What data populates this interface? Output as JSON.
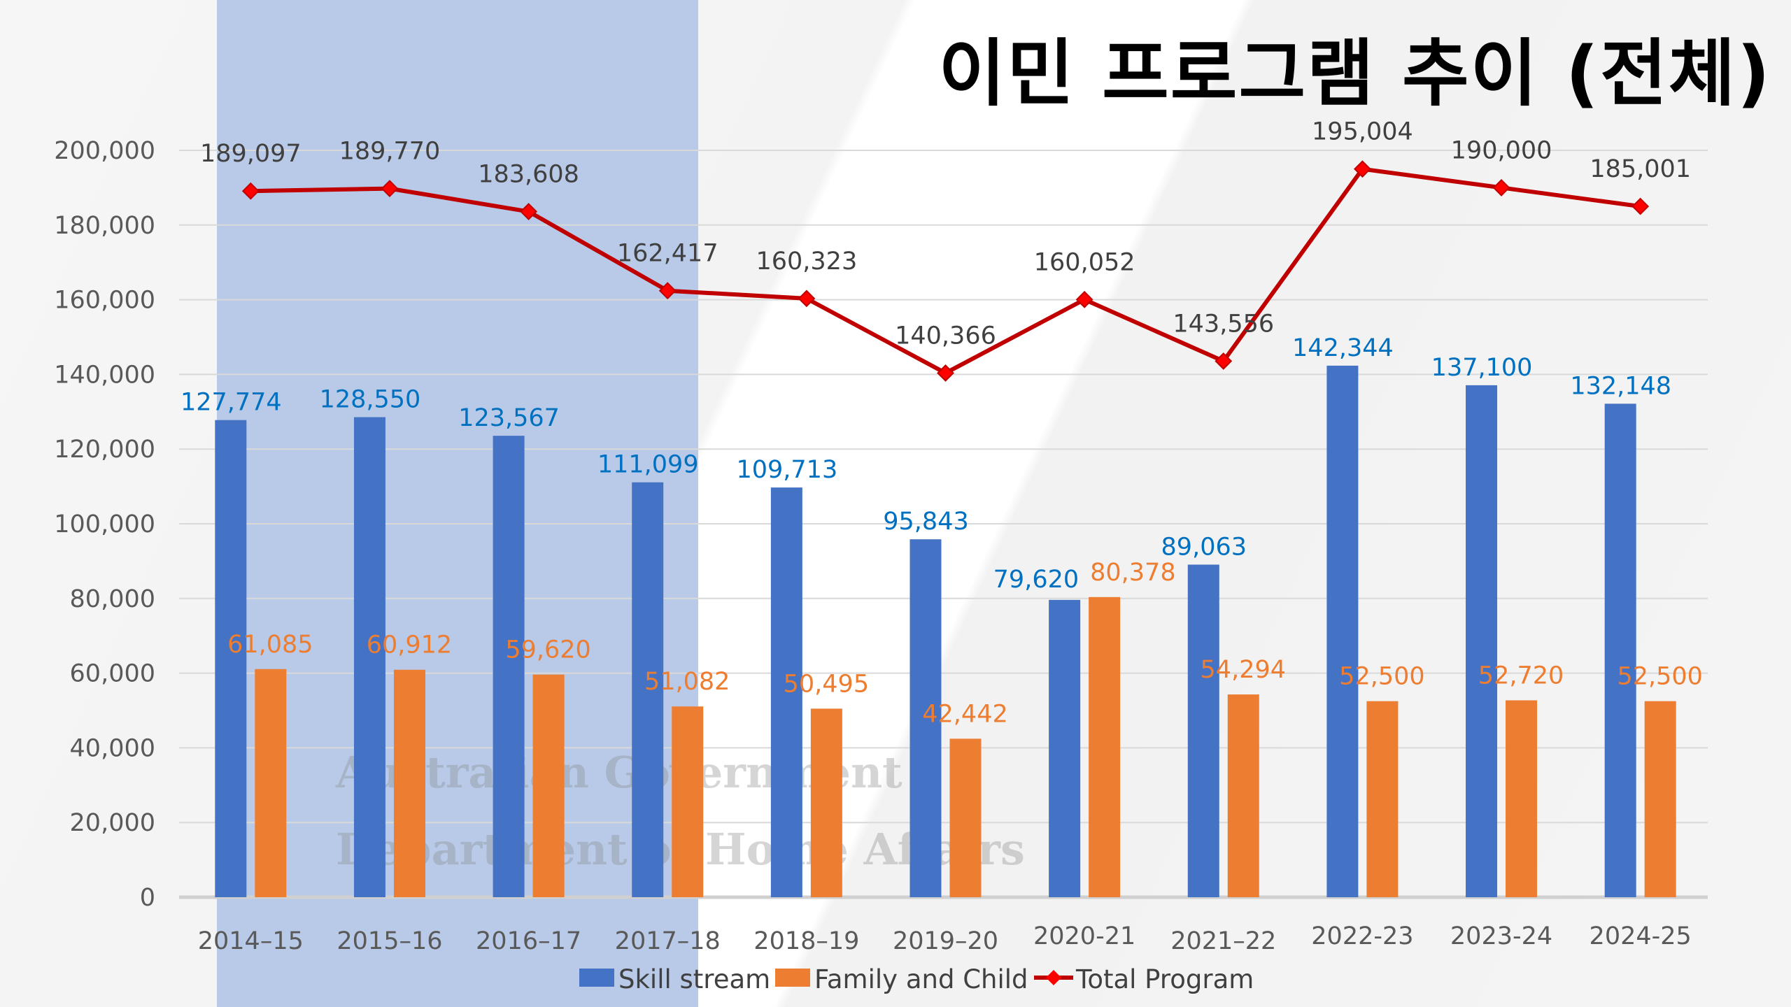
{
  "title": "이민 프로그램 추이 (전체)",
  "watermark": {
    "line1": "Australian Government",
    "line2": "Department of Home Affairs"
  },
  "colors": {
    "skill": "#4472C4",
    "family": "#ED7D31",
    "total": "#C00000",
    "skill_label": "#0070C0",
    "family_label": "#ED7D31",
    "highlight_band": "#B4C7E7"
  },
  "chart_data": {
    "type": "bar",
    "title": "이민 프로그램 추이 (전체)",
    "categories": [
      "2014–15",
      "2015–16",
      "2016–17",
      "2017–18",
      "2018–19",
      "2019–20",
      "2020-21",
      "2021–22",
      "2022-23",
      "2023-24",
      "2024-25"
    ],
    "series": [
      {
        "name": "Skill stream",
        "type": "bar",
        "values": [
          127774,
          128550,
          123567,
          111099,
          109713,
          95843,
          79620,
          89063,
          142344,
          137100,
          132148
        ],
        "labels": [
          "127,774",
          "128,550",
          "123,567",
          "111,099",
          "109,713",
          "95,843",
          "79,620",
          "89,063",
          "142,344",
          "137,100",
          "132,148"
        ]
      },
      {
        "name": "Family and Child",
        "type": "bar",
        "values": [
          61085,
          60912,
          59620,
          51082,
          50495,
          42442,
          80378,
          54294,
          52500,
          52720,
          52500
        ],
        "labels": [
          "61,085",
          "60,912",
          "59,620",
          "51,082",
          "50,495",
          "42,442",
          "80,378",
          "54,294",
          "52,500",
          "52,720",
          "52,500"
        ]
      },
      {
        "name": "Total  Program",
        "type": "line",
        "values": [
          189097,
          189770,
          183608,
          162417,
          160323,
          140366,
          160052,
          143556,
          195004,
          190000,
          185001
        ],
        "labels": [
          "189,097",
          "189,770",
          "183,608",
          "162,417",
          "160,323",
          "140,366",
          "160,052",
          "143,556",
          "195,004",
          "190,000",
          "185,001"
        ]
      }
    ],
    "ylim": [
      0,
      200000
    ],
    "yticks": [
      "0",
      "20,000",
      "40,000",
      "60,000",
      "80,000",
      "100,000",
      "120,000",
      "140,000",
      "160,000",
      "180,000",
      "200,000"
    ],
    "grid": true,
    "legend": "bottom",
    "highlighted_categories": [
      "2014–15",
      "2015–16",
      "2016–17",
      "2017–18"
    ]
  }
}
